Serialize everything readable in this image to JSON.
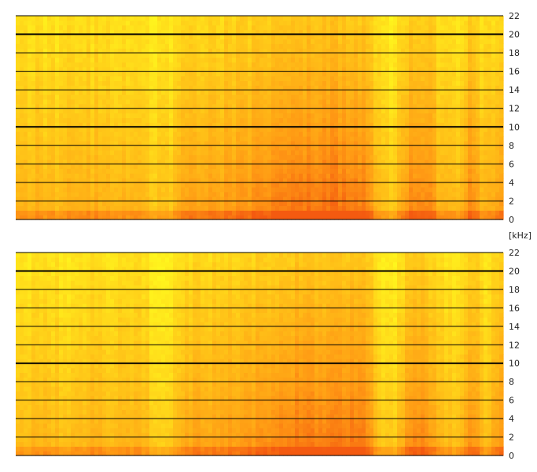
{
  "chart_data": [
    {
      "type": "heatmap",
      "name": "upper-channel-spectrogram",
      "x_axis": "time",
      "y_axis": "frequency",
      "y_unit": "kHz",
      "ylim": [
        0,
        22
      ],
      "y_ticks": [
        0,
        2,
        4,
        6,
        8,
        10,
        12,
        14,
        16,
        18,
        20,
        22
      ],
      "y_tick_labels": [
        "0",
        "2",
        "4",
        "6",
        "8",
        "10",
        "12",
        "14",
        "16",
        "18",
        "20",
        "22"
      ],
      "bold_grid_ticks": [
        10,
        20
      ],
      "grid": true,
      "tick_side": "right",
      "colormap": [
        "#ffff1e",
        "#ffc818",
        "#ff9914",
        "#f45a10"
      ],
      "energy_profile": [
        0.38,
        0.4,
        0.42,
        0.35,
        0.45,
        0.44,
        0.4,
        0.42,
        0.43,
        0.3,
        0.28,
        0.52,
        0.55,
        0.53,
        0.58,
        0.6,
        0.66,
        0.72,
        0.78,
        0.8,
        0.78,
        0.82,
        0.8,
        0.76,
        0.32,
        0.3,
        0.7,
        0.74,
        0.4,
        0.35,
        0.68,
        0.36,
        0.62
      ]
    },
    {
      "type": "heatmap",
      "name": "lower-channel-spectrogram",
      "x_axis": "time",
      "y_axis": "frequency",
      "y_unit": "kHz",
      "ylim": [
        0,
        22
      ],
      "y_ticks": [
        0,
        2,
        4,
        6,
        8,
        10,
        12,
        14,
        16,
        18,
        20,
        22
      ],
      "y_tick_labels": [
        "0",
        "2",
        "4",
        "6",
        "8",
        "10",
        "12",
        "14",
        "16",
        "18",
        "20",
        "22"
      ],
      "bold_grid_ticks": [
        10,
        20
      ],
      "grid": true,
      "tick_side": "right",
      "colormap": [
        "#ffff1e",
        "#ffc818",
        "#ff9914",
        "#f45a10"
      ],
      "energy_profile": [
        0.36,
        0.38,
        0.4,
        0.34,
        0.42,
        0.42,
        0.38,
        0.4,
        0.41,
        0.28,
        0.27,
        0.5,
        0.52,
        0.51,
        0.56,
        0.58,
        0.63,
        0.7,
        0.75,
        0.77,
        0.75,
        0.79,
        0.77,
        0.73,
        0.3,
        0.28,
        0.67,
        0.71,
        0.38,
        0.33,
        0.65,
        0.34,
        0.6
      ]
    }
  ],
  "unit_label": "[kHz]"
}
